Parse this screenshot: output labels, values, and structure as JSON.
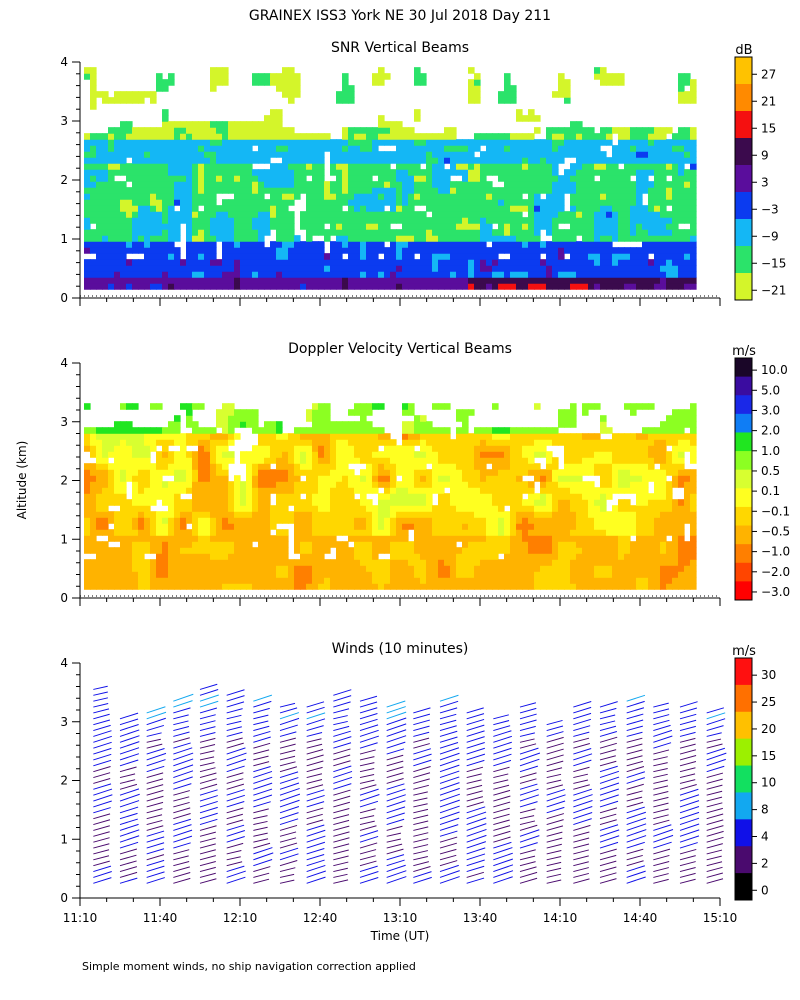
{
  "figure": {
    "title": "GRAINEX ISS3 York NE  30 Jul 2018 Day 211",
    "ylabel": "Altitude (km)",
    "xlabel": "Time (UT)",
    "footnote": "Simple moment winds, no ship navigation correction applied"
  },
  "colors": {
    "snr_scale": [
      "#d4f52a",
      "#2be36a",
      "#14b7f5",
      "#0b3bf0",
      "#5a0d9c",
      "#3b0a4d",
      "#f51010",
      "#ff8a00",
      "#ffc200"
    ],
    "vel_scale": [
      "#ff0000",
      "#ff4500",
      "#ff7f00",
      "#ffb300",
      "#ffd700",
      "#ffff20",
      "#d8ff30",
      "#8cff22",
      "#20e620",
      "#0f7df5",
      "#1a28e8",
      "#3a0ca0",
      "#1a0628"
    ],
    "wind_scale": [
      "#000000",
      "#4a0a6e",
      "#1010e8",
      "#12a8f0",
      "#12e060",
      "#9cf000",
      "#ffc000",
      "#ff7000",
      "#ff1010"
    ]
  },
  "chart_data": [
    {
      "type": "heatmap",
      "title": "SNR Vertical Beams",
      "colorbar_unit": "dB",
      "colorbar_ticks": [
        "27",
        "21",
        "15",
        "9",
        "3",
        "−3",
        "−9",
        "−15",
        "−21"
      ],
      "x_tick_labels": [
        "",
        "",
        "",
        "",
        "",
        "",
        "",
        "",
        ""
      ],
      "y_tick_labels": [
        "0",
        "1",
        "2",
        "3",
        "4"
      ],
      "xlim_minutes_after_11_10": [
        0,
        240
      ],
      "ylim_km": [
        0,
        4
      ],
      "data_top_km": 3.9,
      "description_values": {
        "low_layer_dB_range": [
          -3,
          9
        ],
        "mid_layer_dB_range": [
          -15,
          -9
        ],
        "upper_layer_dB_range": [
          -21,
          -15
        ]
      }
    },
    {
      "type": "heatmap",
      "title": "Doppler Velocity Vertical Beams",
      "colorbar_unit": "m/s",
      "colorbar_ticks": [
        "10.0",
        "5.0",
        "3.0",
        "2.0",
        "1.0",
        "0.5",
        "0.1",
        "−0.1",
        "−0.5",
        "−1.0",
        "−2.0",
        "−3.0"
      ],
      "x_tick_labels": [
        "",
        "",
        "",
        "",
        "",
        "",
        "",
        "",
        ""
      ],
      "y_tick_labels": [
        "0",
        "1",
        "2",
        "3",
        "4"
      ],
      "xlim_minutes_after_11_10": [
        0,
        240
      ],
      "ylim_km": [
        0,
        4
      ],
      "dominant_velocity_ms": [
        -0.5,
        0.1
      ]
    },
    {
      "type": "scatter",
      "title": "Winds (10 minutes)",
      "colorbar_unit": "m/s",
      "colorbar_ticks": [
        "30",
        "25",
        "20",
        "15",
        "10",
        "8",
        "4",
        "2",
        "0"
      ],
      "x_tick_labels": [
        "11:10",
        "11:40",
        "12:10",
        "12:40",
        "13:10",
        "13:40",
        "14:10",
        "14:40",
        "15:10"
      ],
      "y_tick_labels": [
        "0",
        "1",
        "2",
        "3",
        "4"
      ],
      "xlim_minutes_after_11_10": [
        0,
        240
      ],
      "ylim_km": [
        0,
        4
      ],
      "profile_times_minutes": [
        5,
        15,
        25,
        35,
        45,
        55,
        65,
        75,
        85,
        95,
        105,
        115,
        125,
        135,
        145,
        155,
        165,
        175,
        185,
        195,
        205,
        215,
        225,
        235
      ],
      "profile_top_km": [
        3.6,
        3.1,
        3.2,
        3.4,
        3.6,
        3.5,
        3.4,
        3.3,
        3.3,
        3.5,
        3.4,
        3.3,
        3.2,
        3.4,
        3.2,
        3.1,
        3.3,
        3.0,
        3.3,
        3.3,
        3.4,
        3.3,
        3.3,
        3.2
      ]
    }
  ]
}
